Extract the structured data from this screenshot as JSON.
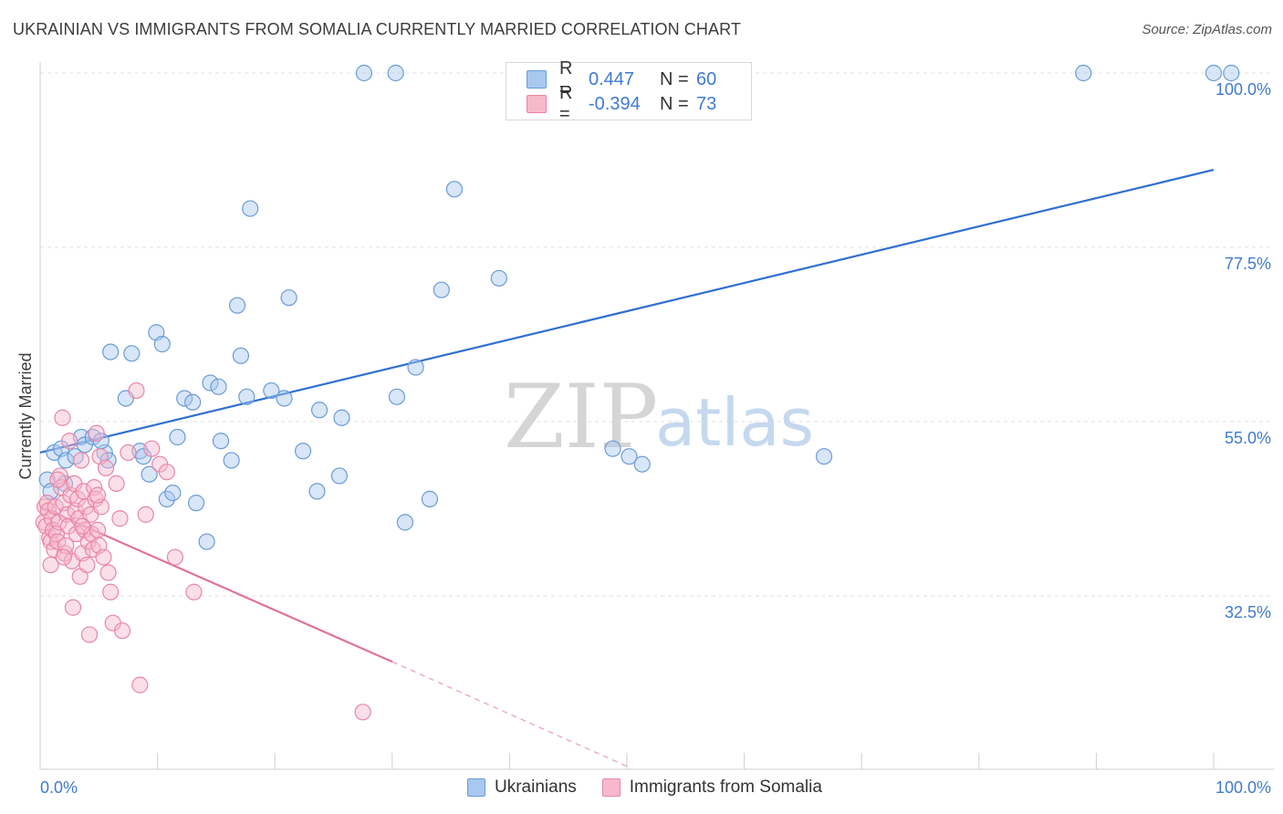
{
  "title": "UKRAINIAN VS IMMIGRANTS FROM SOMALIA CURRENTLY MARRIED CORRELATION CHART",
  "source": "Source: ZipAtlas.com",
  "watermark": {
    "zip": "ZIP",
    "atlas": "atlas"
  },
  "legend": {
    "rows": [
      {
        "r_label": "R =",
        "r_value": "0.447",
        "n_label": "N =",
        "n_value": "60",
        "color": "#a8c8f0",
        "border": "#6a9bd8"
      },
      {
        "r_label": "R =",
        "r_value": "-0.394",
        "n_label": "N =",
        "n_value": "73",
        "color": "#f7b8cc",
        "border": "#e886a6"
      }
    ]
  },
  "bottom_legend": [
    {
      "label": "Ukrainians",
      "color": "#a8c8f0",
      "border": "#6a9bd8"
    },
    {
      "label": "Immigrants from Somalia",
      "color": "#f7b8cc",
      "border": "#e886a6"
    }
  ],
  "chart_data": {
    "type": "scatter",
    "title": "UKRAINIAN VS IMMIGRANTS FROM SOMALIA CURRENTLY MARRIED CORRELATION CHART",
    "xlabel": "",
    "ylabel": "Currently Married",
    "xlim": [
      0,
      100
    ],
    "ylim": [
      10,
      102
    ],
    "x_tick_labels": [
      "0.0%",
      "100.0%"
    ],
    "y_ticks": [
      32.5,
      55.0,
      77.5,
      100.0
    ],
    "y_tick_labels": [
      "32.5%",
      "55.0%",
      "77.5%",
      "100.0%"
    ],
    "grid": true,
    "series": [
      {
        "name": "Ukrainians",
        "color": "#6a9bd8",
        "fill": "#a8c8f0",
        "trend": {
          "x0": 0,
          "y0": 51.0,
          "x1": 100,
          "y1": 87.5,
          "color": "#2f6fcf"
        },
        "points": [
          [
            0.6,
            47.5
          ],
          [
            0.9,
            46.0
          ],
          [
            1.2,
            51.0
          ],
          [
            1.8,
            51.5
          ],
          [
            2.2,
            50.0
          ],
          [
            3.0,
            50.5
          ],
          [
            3.5,
            53.0
          ],
          [
            3.8,
            52.0
          ],
          [
            4.5,
            53.0
          ],
          [
            5.5,
            51.0
          ],
          [
            5.8,
            50.0
          ],
          [
            6.0,
            64.0
          ],
          [
            7.3,
            58.0
          ],
          [
            7.8,
            63.8
          ],
          [
            8.5,
            51.2
          ],
          [
            8.8,
            50.5
          ],
          [
            9.3,
            48.2
          ],
          [
            9.9,
            66.5
          ],
          [
            10.4,
            65.0
          ],
          [
            10.8,
            45.0
          ],
          [
            11.3,
            45.8
          ],
          [
            11.7,
            53.0
          ],
          [
            12.3,
            58.0
          ],
          [
            13.0,
            57.5
          ],
          [
            13.3,
            44.5
          ],
          [
            14.2,
            39.5
          ],
          [
            14.5,
            60.0
          ],
          [
            15.2,
            59.5
          ],
          [
            15.4,
            52.5
          ],
          [
            16.3,
            50.0
          ],
          [
            16.8,
            70.0
          ],
          [
            17.1,
            63.5
          ],
          [
            17.6,
            58.2
          ],
          [
            17.9,
            82.5
          ],
          [
            19.7,
            59.0
          ],
          [
            20.8,
            58.0
          ],
          [
            21.2,
            71.0
          ],
          [
            22.4,
            51.2
          ],
          [
            23.6,
            46.0
          ],
          [
            23.8,
            56.5
          ],
          [
            25.5,
            48.0
          ],
          [
            25.7,
            55.5
          ],
          [
            27.6,
            100.0
          ],
          [
            30.3,
            100.0
          ],
          [
            30.4,
            58.2
          ],
          [
            31.1,
            42.0
          ],
          [
            32.0,
            62.0
          ],
          [
            33.2,
            45.0
          ],
          [
            34.2,
            72.0
          ],
          [
            35.3,
            85.0
          ],
          [
            39.1,
            73.5
          ],
          [
            48.8,
            51.5
          ],
          [
            50.2,
            50.5
          ],
          [
            51.3,
            49.5
          ],
          [
            66.8,
            50.5
          ],
          [
            88.9,
            100.0
          ],
          [
            100.0,
            100.0
          ],
          [
            101.5,
            100.0
          ],
          [
            2.1,
            47.0
          ],
          [
            5.2,
            52.5
          ]
        ]
      },
      {
        "name": "Immigrants from Somalia",
        "color": "#e886a6",
        "fill": "#f7b8cc",
        "trend": {
          "x0": 0,
          "y0": 44.0,
          "x1": 30,
          "y1": 24.0,
          "color": "#e0739a"
        },
        "trend_dashed": {
          "x0": 30,
          "y0": 24.0,
          "x1": 50,
          "y1": 10.5
        },
        "points": [
          [
            0.3,
            42.0
          ],
          [
            0.4,
            44.0
          ],
          [
            0.5,
            41.5
          ],
          [
            0.6,
            44.5
          ],
          [
            0.7,
            43.5
          ],
          [
            0.8,
            40.0
          ],
          [
            0.9,
            39.5
          ],
          [
            1.0,
            42.5
          ],
          [
            1.1,
            41.0
          ],
          [
            1.2,
            38.5
          ],
          [
            1.3,
            44.0
          ],
          [
            1.4,
            40.5
          ],
          [
            1.5,
            39.5
          ],
          [
            1.6,
            42.0
          ],
          [
            1.7,
            48.0
          ],
          [
            1.8,
            46.5
          ],
          [
            1.9,
            55.5
          ],
          [
            2.0,
            44.5
          ],
          [
            2.1,
            38.0
          ],
          [
            2.2,
            39.0
          ],
          [
            2.3,
            43.0
          ],
          [
            2.4,
            41.5
          ],
          [
            2.5,
            52.5
          ],
          [
            2.6,
            45.5
          ],
          [
            2.7,
            37.0
          ],
          [
            2.8,
            31.0
          ],
          [
            2.9,
            47.0
          ],
          [
            3.0,
            43.5
          ],
          [
            3.1,
            40.5
          ],
          [
            3.2,
            45.0
          ],
          [
            3.3,
            42.5
          ],
          [
            3.4,
            35.0
          ],
          [
            3.5,
            50.0
          ],
          [
            3.6,
            38.0
          ],
          [
            3.7,
            46.0
          ],
          [
            3.8,
            41.0
          ],
          [
            3.9,
            44.0
          ],
          [
            4.0,
            36.5
          ],
          [
            4.1,
            39.5
          ],
          [
            4.2,
            27.5
          ],
          [
            4.3,
            43.0
          ],
          [
            4.4,
            40.5
          ],
          [
            4.5,
            38.5
          ],
          [
            4.6,
            46.5
          ],
          [
            4.7,
            45.0
          ],
          [
            4.8,
            53.5
          ],
          [
            4.9,
            41.0
          ],
          [
            5.0,
            39.0
          ],
          [
            5.1,
            50.5
          ],
          [
            5.2,
            44.0
          ],
          [
            5.4,
            37.5
          ],
          [
            5.6,
            49.0
          ],
          [
            5.8,
            35.5
          ],
          [
            6.0,
            33.0
          ],
          [
            6.2,
            29.0
          ],
          [
            6.5,
            47.0
          ],
          [
            6.8,
            42.5
          ],
          [
            7.0,
            28.0
          ],
          [
            7.5,
            51.0
          ],
          [
            8.2,
            59.0
          ],
          [
            8.5,
            21.0
          ],
          [
            9.0,
            43.0
          ],
          [
            9.5,
            51.5
          ],
          [
            10.2,
            49.5
          ],
          [
            10.8,
            48.5
          ],
          [
            11.5,
            37.5
          ],
          [
            13.1,
            33.0
          ],
          [
            27.5,
            17.5
          ],
          [
            3.6,
            41.5
          ],
          [
            2.0,
            37.5
          ],
          [
            1.5,
            47.5
          ],
          [
            0.9,
            36.5
          ],
          [
            4.9,
            45.5
          ]
        ]
      }
    ]
  }
}
